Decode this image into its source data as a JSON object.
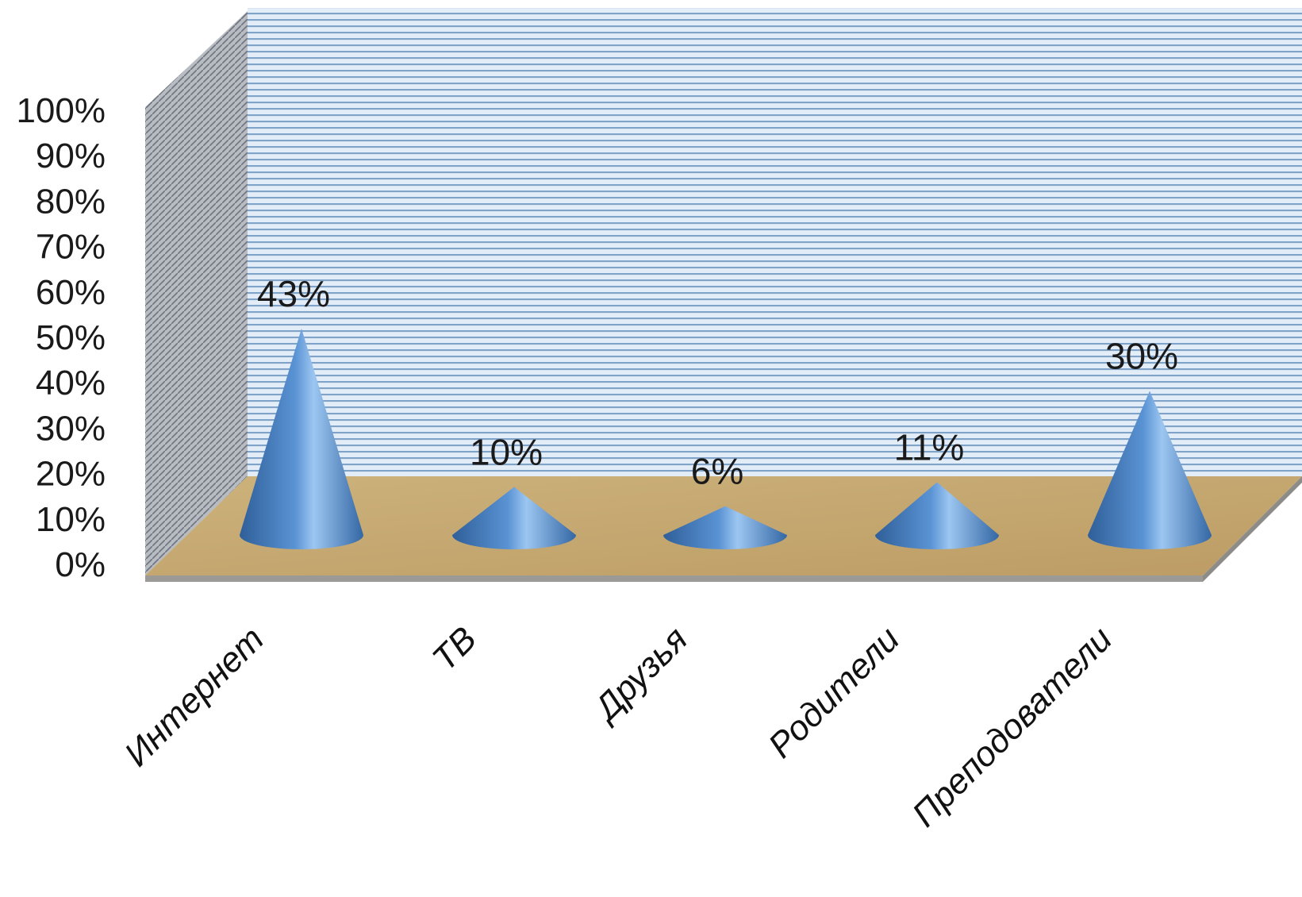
{
  "chart_data": {
    "type": "bar",
    "shape": "3d-cone",
    "categories": [
      "Интернет",
      "ТВ",
      "Друзья",
      "Родители",
      "Преподователи"
    ],
    "values": [
      43,
      10,
      6,
      11,
      30
    ],
    "data_labels": [
      "43%",
      "10%",
      "6%",
      "11%",
      "30%"
    ],
    "y_ticks": [
      "0%",
      "10%",
      "20%",
      "30%",
      "40%",
      "50%",
      "60%",
      "70%",
      "80%",
      "90%",
      "100%"
    ],
    "ylim": [
      0,
      100
    ],
    "grid": true,
    "legend": "none",
    "colors": {
      "cone": "#4f86c6",
      "back_wall": "#d9e6f2",
      "grid_line": "#7fa3c8",
      "side_wall": "#a9adb4",
      "floor": "#c8a870"
    }
  }
}
